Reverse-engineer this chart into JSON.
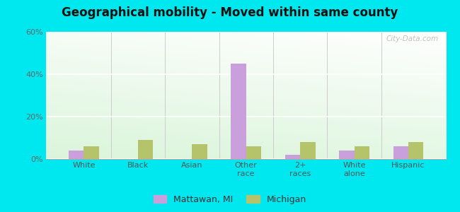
{
  "title": "Geographical mobility - Moved within same county",
  "categories": [
    "White",
    "Black",
    "Asian",
    "Other\nrace",
    "2+\nraces",
    "White\nalone",
    "Hispanic"
  ],
  "mattawan": [
    4,
    0,
    0,
    45,
    2,
    4,
    6
  ],
  "michigan": [
    6,
    9,
    7,
    6,
    8,
    6,
    8
  ],
  "mattawan_color": "#c9a0dc",
  "michigan_color": "#b5c46a",
  "ylim": [
    0,
    60
  ],
  "yticks": [
    0,
    20,
    40,
    60
  ],
  "ytick_labels": [
    "0%",
    "20%",
    "40%",
    "60%"
  ],
  "outer_bg": "#00e8ef",
  "bar_width": 0.28,
  "legend_labels": [
    "Mattawan, MI",
    "Michigan"
  ],
  "watermark": "City-Data.com",
  "bg_top_left": "#e8f5e2",
  "bg_top_right": "#f8fff8",
  "bg_bottom_left": "#c8edc0",
  "bg_bottom_right": "#e0f5d8"
}
